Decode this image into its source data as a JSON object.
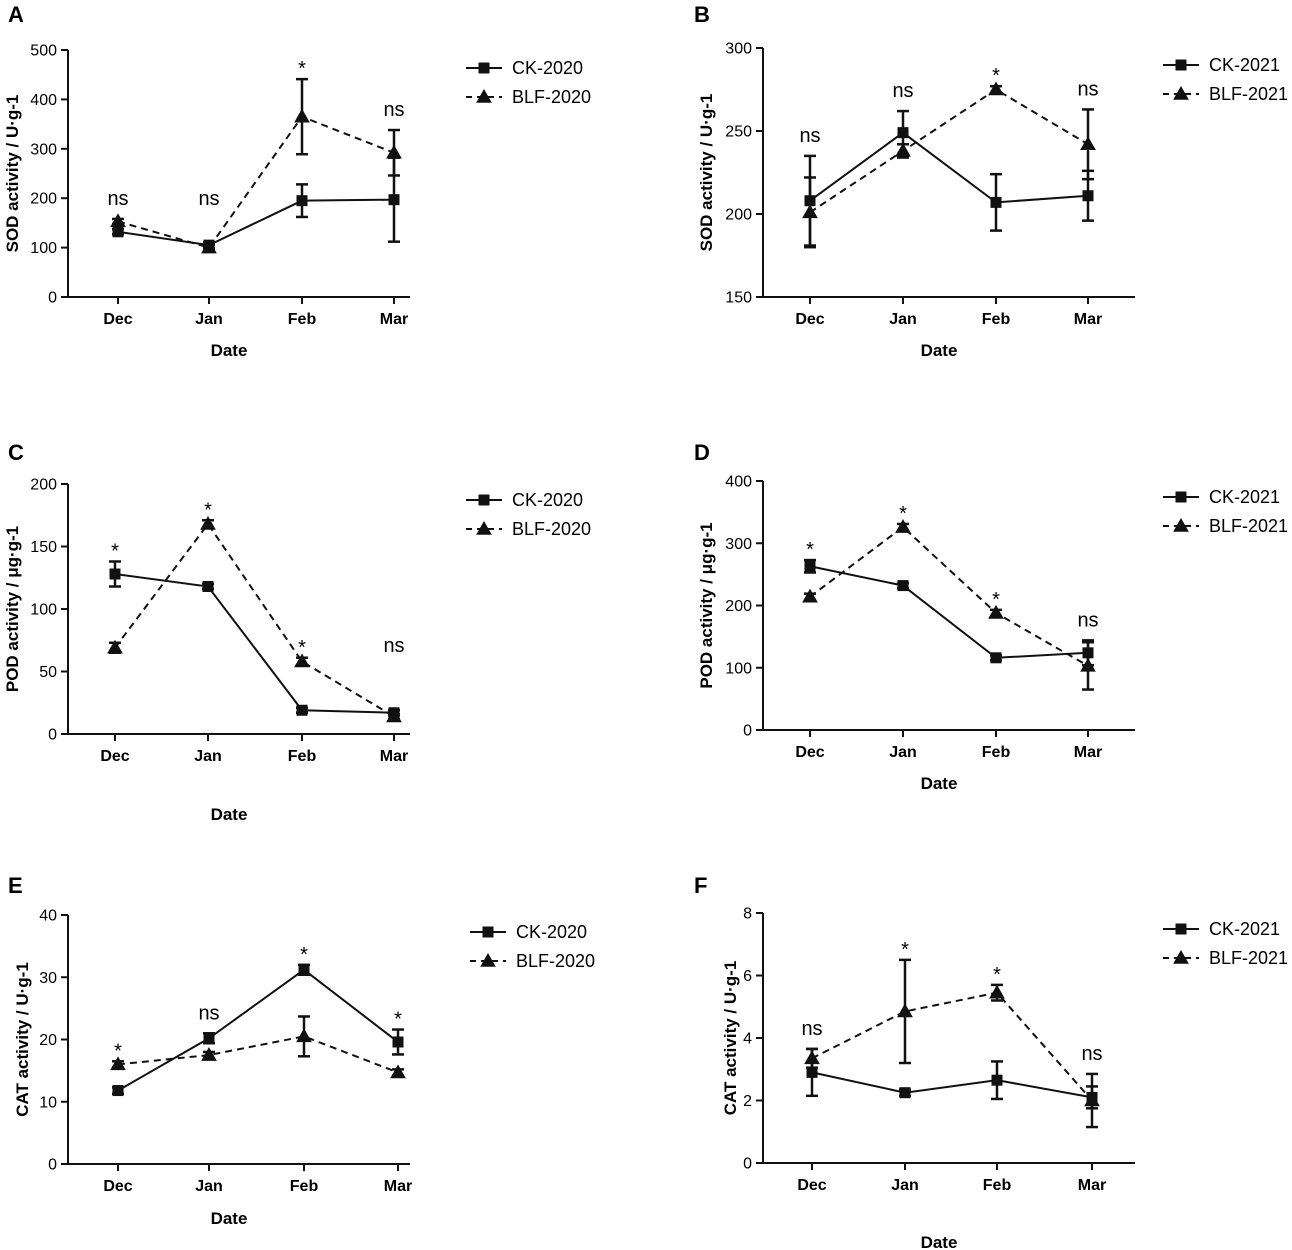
{
  "chart_data": [
    {
      "type": "line",
      "letter": "A",
      "ylabel": "SOD activity / U·g-1",
      "xlabel": "Date",
      "categories": [
        "Dec",
        "Jan",
        "Feb",
        "Mar"
      ],
      "ylim": [
        0,
        500
      ],
      "yticks": [
        "0",
        "100",
        "200",
        "300",
        "400",
        "500"
      ],
      "series": [
        {
          "name": "CK-2020",
          "marker": "square",
          "dash": "solid",
          "values": [
            132,
            105,
            195,
            197
          ],
          "errors": [
            5,
            6,
            33,
            85
          ]
        },
        {
          "name": "BLF-2020",
          "marker": "triangle",
          "dash": "dashed",
          "values": [
            153,
            100,
            365,
            292
          ],
          "errors": [
            5,
            6,
            76,
            46
          ]
        }
      ],
      "significance": [
        "ns",
        "ns",
        "*",
        "ns"
      ]
    },
    {
      "type": "line",
      "letter": "B",
      "ylabel": "SOD activity / U·g-1",
      "xlabel": "Date",
      "categories": [
        "Dec",
        "Jan",
        "Feb",
        "Mar"
      ],
      "ylim": [
        150,
        300
      ],
      "yticks": [
        "150",
        "200",
        "250",
        "300"
      ],
      "series": [
        {
          "name": "CK-2021",
          "marker": "square",
          "dash": "solid",
          "values": [
            208,
            249,
            207,
            211
          ],
          "errors": [
            27,
            13,
            17,
            15
          ]
        },
        {
          "name": "BLF-2021",
          "marker": "triangle",
          "dash": "dashed",
          "values": [
            201,
            238,
            275,
            242
          ],
          "errors": [
            21,
            4,
            2,
            21
          ]
        }
      ],
      "significance": [
        "ns",
        "ns",
        "*",
        "ns"
      ]
    },
    {
      "type": "line",
      "letter": "C",
      "ylabel": "POD activity / μg·g-1",
      "xlabel": "Date",
      "categories": [
        "Dec",
        "Jan",
        "Feb",
        "Mar"
      ],
      "ylim": [
        0,
        200
      ],
      "yticks": [
        "0",
        "50",
        "100",
        "150",
        "200"
      ],
      "series": [
        {
          "name": "CK-2020",
          "marker": "square",
          "dash": "solid",
          "values": [
            128,
            118,
            19,
            17
          ],
          "errors": [
            10,
            2,
            2,
            2
          ]
        },
        {
          "name": "BLF-2020",
          "marker": "triangle",
          "dash": "dashed",
          "values": [
            69,
            168,
            58,
            14
          ],
          "errors": [
            4,
            3,
            3,
            2
          ]
        }
      ],
      "significance": [
        "*",
        "*",
        "*",
        "ns"
      ]
    },
    {
      "type": "line",
      "letter": "D",
      "ylabel": "POD activity / μg·g-1",
      "xlabel": "Date",
      "categories": [
        "Dec",
        "Jan",
        "Feb",
        "Mar"
      ],
      "ylim": [
        0,
        400
      ],
      "yticks": [
        "0",
        "100",
        "200",
        "300",
        "400"
      ],
      "series": [
        {
          "name": "CK-2021",
          "marker": "square",
          "dash": "solid",
          "values": [
            263,
            232,
            116,
            124
          ],
          "errors": [
            10,
            4,
            4,
            20
          ]
        },
        {
          "name": "BLF-2021",
          "marker": "triangle",
          "dash": "dashed",
          "values": [
            214,
            326,
            188,
            103
          ],
          "errors": [
            5,
            5,
            5,
            38
          ]
        }
      ],
      "significance": [
        "*",
        "*",
        "*",
        "ns"
      ]
    },
    {
      "type": "line",
      "letter": "E",
      "ylabel": "CAT activity / U·g-1",
      "xlabel": "Date",
      "categories": [
        "Dec",
        "Jan",
        "Feb",
        "Mar"
      ],
      "ylim": [
        0,
        40
      ],
      "yticks": [
        "0",
        "10",
        "20",
        "30",
        "40"
      ],
      "series": [
        {
          "name": "CK-2020",
          "marker": "square",
          "dash": "solid",
          "values": [
            11.8,
            20.2,
            31.2,
            19.6
          ],
          "errors": [
            0.5,
            0.8,
            0.8,
            2
          ]
        },
        {
          "name": "BLF-2020",
          "marker": "triangle",
          "dash": "dashed",
          "values": [
            16,
            17.5,
            20.5,
            14.7
          ],
          "errors": [
            0.5,
            0.5,
            3.2,
            0.5
          ]
        }
      ],
      "significance": [
        "*",
        "ns",
        "*",
        "*"
      ]
    },
    {
      "type": "line",
      "letter": "F",
      "ylabel": "CAT activity / U·g-1",
      "xlabel": "Date",
      "categories": [
        "Dec",
        "Jan",
        "Feb",
        "Mar"
      ],
      "ylim": [
        0,
        8
      ],
      "yticks": [
        "0",
        "2",
        "4",
        "6",
        "8"
      ],
      "series": [
        {
          "name": "CK-2021",
          "marker": "square",
          "dash": "solid",
          "values": [
            2.9,
            2.25,
            2.65,
            2.1
          ],
          "errors": [
            0.75,
            0.1,
            0.6,
            0.35
          ]
        },
        {
          "name": "BLF-2021",
          "marker": "triangle",
          "dash": "dashed",
          "values": [
            3.35,
            4.85,
            5.45,
            2.0
          ],
          "errors": [
            0.3,
            1.65,
            0.25,
            0.85
          ]
        }
      ],
      "significance": [
        "ns",
        "*",
        "*",
        "ns"
      ]
    }
  ]
}
